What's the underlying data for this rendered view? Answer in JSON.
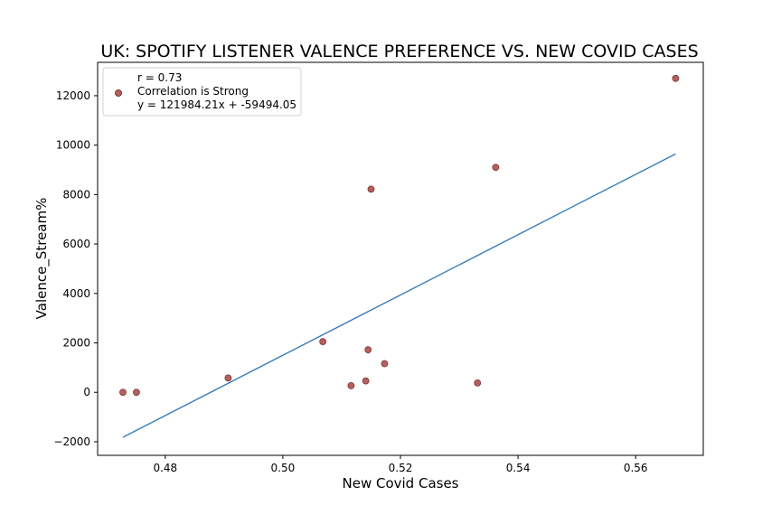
{
  "chart_data": {
    "type": "scatter",
    "title": "UK: SPOTIFY LISTENER VALENCE PREFERENCE VS. NEW COVID CASES",
    "xlabel": "New Covid Cases",
    "ylabel": "Valence_Stream%",
    "xlim": [
      0.4685,
      0.5715
    ],
    "ylim": [
      -2550,
      13350
    ],
    "x_ticks": [
      0.48,
      0.5,
      0.52,
      0.54,
      0.56
    ],
    "x_tick_labels": [
      "0.48",
      "0.50",
      "0.52",
      "0.54",
      "0.56"
    ],
    "y_ticks": [
      -2000,
      0,
      2000,
      4000,
      6000,
      8000,
      10000,
      12000
    ],
    "y_tick_labels": [
      "−2000",
      "0",
      "2000",
      "4000",
      "6000",
      "8000",
      "10000",
      "12000"
    ],
    "grid": false,
    "legend_position": "upper-left",
    "legend_lines": [
      "r = 0.73",
      "Correlation is Strong",
      "y = 121984.21x + -59494.05"
    ],
    "series": [
      {
        "type": "scatter",
        "color": "#b5605e",
        "points": [
          {
            "x": 0.4728,
            "y": 0
          },
          {
            "x": 0.4751,
            "y": 0
          },
          {
            "x": 0.4907,
            "y": 580
          },
          {
            "x": 0.5068,
            "y": 2050
          },
          {
            "x": 0.5116,
            "y": 270
          },
          {
            "x": 0.5141,
            "y": 460
          },
          {
            "x": 0.5145,
            "y": 1720
          },
          {
            "x": 0.515,
            "y": 8220
          },
          {
            "x": 0.5173,
            "y": 1160
          },
          {
            "x": 0.5331,
            "y": 380
          },
          {
            "x": 0.5362,
            "y": 9100
          },
          {
            "x": 0.5668,
            "y": 12700
          }
        ]
      },
      {
        "type": "line",
        "color": "#3b7db8",
        "slope": 121984.21,
        "intercept": -59494.05,
        "x_range": [
          0.4728,
          0.5668
        ]
      }
    ]
  }
}
